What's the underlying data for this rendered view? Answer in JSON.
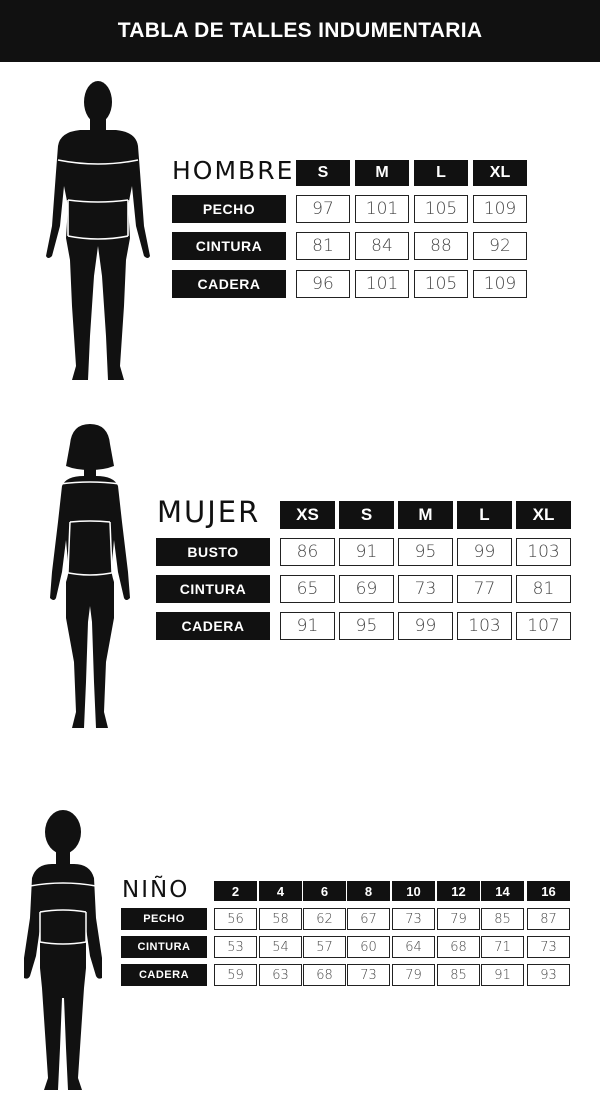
{
  "page_title": "TABLA DE TALLES INDUMENTARIA",
  "sections": [
    {
      "title": "HOMBRE",
      "sizes": [
        "S",
        "M",
        "L",
        "XL"
      ],
      "rows": [
        {
          "label": "PECHO",
          "values": [
            "97",
            "101",
            "105",
            "109"
          ]
        },
        {
          "label": "CINTURA",
          "values": [
            "81",
            "84",
            "88",
            "92"
          ]
        },
        {
          "label": "CADERA",
          "values": [
            "96",
            "101",
            "105",
            "109"
          ]
        }
      ]
    },
    {
      "title": "MUJER",
      "sizes": [
        "XS",
        "S",
        "M",
        "L",
        "XL"
      ],
      "rows": [
        {
          "label": "BUSTO",
          "values": [
            "86",
            "91",
            "95",
            "99",
            "103"
          ]
        },
        {
          "label": "CINTURA",
          "values": [
            "65",
            "69",
            "73",
            "77",
            "81"
          ]
        },
        {
          "label": "CADERA",
          "values": [
            "91",
            "95",
            "99",
            "103",
            "107"
          ]
        }
      ]
    },
    {
      "title": "NIÑO",
      "sizes": [
        "2",
        "4",
        "6",
        "8",
        "10",
        "12",
        "14",
        "16"
      ],
      "rows": [
        {
          "label": "PECHO",
          "values": [
            "56",
            "58",
            "62",
            "67",
            "73",
            "79",
            "85",
            "87"
          ]
        },
        {
          "label": "CINTURA",
          "values": [
            "53",
            "54",
            "57",
            "60",
            "64",
            "68",
            "71",
            "73"
          ]
        },
        {
          "label": "CADERA",
          "values": [
            "59",
            "63",
            "68",
            "73",
            "79",
            "85",
            "91",
            "93"
          ]
        }
      ]
    }
  ],
  "figures": [
    "man-silhouette-icon",
    "woman-silhouette-icon",
    "child-silhouette-icon"
  ],
  "colors": {
    "dark": "#111111",
    "background": "#ffffff",
    "cell_text": "#444444"
  }
}
